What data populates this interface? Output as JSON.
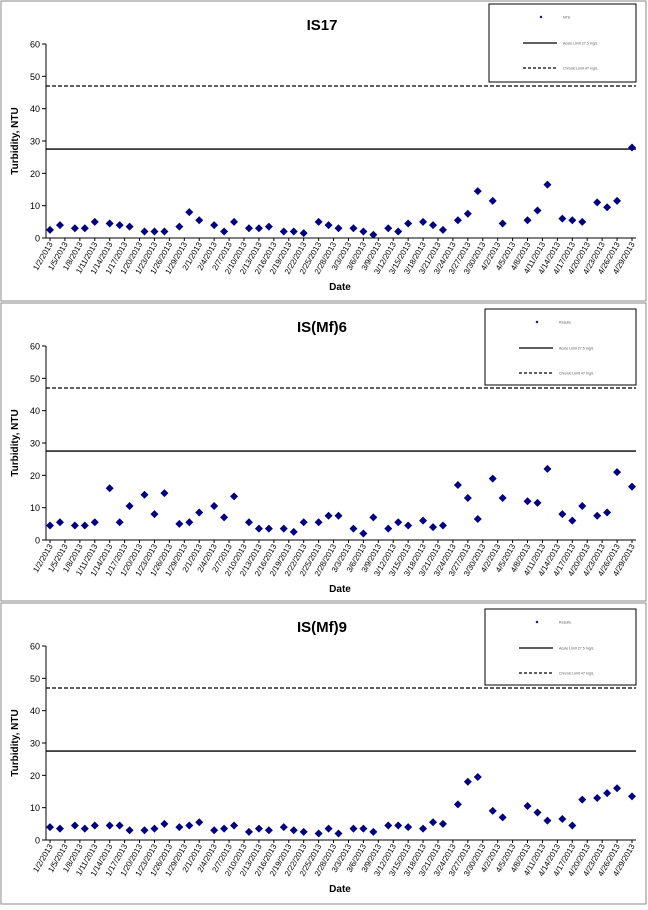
{
  "charts_common": {
    "ylabel": "Turbidity, NTU",
    "xlabel": "Date",
    "ylim": [
      0,
      60
    ],
    "yticks": [
      0,
      10,
      20,
      30,
      40,
      50,
      60
    ],
    "date_ticks": [
      "1/2/2013",
      "1/5/2013",
      "1/8/2013",
      "1/11/2013",
      "1/14/2013",
      "1/17/2013",
      "1/20/2013",
      "1/23/2013",
      "1/26/2013",
      "1/29/2013",
      "2/1/2013",
      "2/4/2013",
      "2/7/2013",
      "2/10/2013",
      "2/13/2013",
      "2/16/2013",
      "2/19/2013",
      "2/22/2013",
      "2/25/2013",
      "2/28/2013",
      "3/3/2013",
      "3/6/2013",
      "3/9/2013",
      "3/12/2013",
      "3/15/2013",
      "3/18/2013",
      "3/21/2013",
      "3/24/2013",
      "3/27/2013",
      "3/30/2013",
      "4/2/2013",
      "4/5/2013",
      "4/8/2013",
      "4/11/2013",
      "4/14/2013",
      "4/17/2013",
      "4/20/2013",
      "4/23/2013",
      "4/26/2013",
      "4/29/2013"
    ],
    "xlim": [
      "1/2/2013",
      "4/29/2013"
    ],
    "colors": {
      "points": "#000080",
      "lines": "#000000"
    }
  },
  "chart_data": [
    {
      "type": "scatter",
      "title": "IS17",
      "legend": {
        "placement": "top-right",
        "entries": [
          "NTU",
          "Acute Limit 27.5 mg/L",
          "Chronic Limit 47 mg/L"
        ]
      },
      "reference_lines": [
        {
          "y": 27.5,
          "style": "solid"
        },
        {
          "y": 47,
          "style": "dashed"
        }
      ],
      "series": [
        {
          "x": [
            "1/2/2013",
            "1/4/2013",
            "1/7/2013",
            "1/9/2013",
            "1/11/2013",
            "1/14/2013",
            "1/16/2013",
            "1/18/2013",
            "1/21/2013",
            "1/23/2013",
            "1/25/2013",
            "1/28/2013",
            "1/30/2013",
            "2/1/2013",
            "2/4/2013",
            "2/6/2013",
            "2/8/2013",
            "2/11/2013",
            "2/13/2013",
            "2/15/2013",
            "2/18/2013",
            "2/20/2013",
            "2/22/2013",
            "2/25/2013",
            "2/27/2013",
            "3/1/2013",
            "3/4/2013",
            "3/6/2013",
            "3/8/2013",
            "3/11/2013",
            "3/13/2013",
            "3/15/2013",
            "3/18/2013",
            "3/20/2013",
            "3/22/2013",
            "3/25/2013",
            "3/27/2013",
            "3/29/2013",
            "4/1/2013",
            "4/3/2013",
            "4/8/2013",
            "4/10/2013",
            "4/12/2013",
            "4/15/2013",
            "4/17/2013",
            "4/19/2013",
            "4/22/2013",
            "4/24/2013",
            "4/26/2013",
            "4/29/2013"
          ],
          "y": [
            2.5,
            4,
            3,
            3,
            5,
            4.5,
            4,
            3.5,
            2,
            2,
            2,
            3.5,
            8,
            5.5,
            4,
            2,
            5,
            3,
            3,
            3.5,
            2,
            2,
            1.5,
            5,
            4,
            3,
            3,
            2,
            1,
            3,
            2,
            4.5,
            5,
            4,
            2.5,
            5.5,
            7.5,
            14.5,
            11.5,
            4.5,
            5.5,
            8.5,
            16.5,
            6,
            5.5,
            5,
            11,
            9.5,
            11.5,
            28
          ]
        }
      ]
    },
    {
      "type": "scatter",
      "title": "IS(Mf)6",
      "legend": {
        "placement": "top-right",
        "entries": [
          "Results",
          "Acute Limit 27.5 mg/L",
          "Chronic Limit 47 mg/L"
        ]
      },
      "reference_lines": [
        {
          "y": 27.5,
          "style": "solid"
        },
        {
          "y": 47,
          "style": "dashed"
        }
      ],
      "series": [
        {
          "x": [
            "1/2/2013",
            "1/4/2013",
            "1/7/2013",
            "1/9/2013",
            "1/11/2013",
            "1/14/2013",
            "1/16/2013",
            "1/18/2013",
            "1/21/2013",
            "1/23/2013",
            "1/25/2013",
            "1/28/2013",
            "1/30/2013",
            "2/1/2013",
            "2/4/2013",
            "2/6/2013",
            "2/8/2013",
            "2/11/2013",
            "2/13/2013",
            "2/15/2013",
            "2/18/2013",
            "2/20/2013",
            "2/22/2013",
            "2/25/2013",
            "2/27/2013",
            "3/1/2013",
            "3/4/2013",
            "3/6/2013",
            "3/8/2013",
            "3/11/2013",
            "3/13/2013",
            "3/15/2013",
            "3/18/2013",
            "3/20/2013",
            "3/22/2013",
            "3/25/2013",
            "3/27/2013",
            "3/29/2013",
            "4/1/2013",
            "4/3/2013",
            "4/8/2013",
            "4/10/2013",
            "4/12/2013",
            "4/15/2013",
            "4/17/2013",
            "4/19/2013",
            "4/22/2013",
            "4/24/2013",
            "4/26/2013",
            "4/29/2013"
          ],
          "y": [
            4.5,
            5.5,
            4.5,
            4.5,
            5.5,
            16,
            5.5,
            10.5,
            14,
            8,
            14.5,
            5,
            5.5,
            8.5,
            10.5,
            7,
            13.5,
            5.5,
            3.5,
            3.5,
            3.5,
            2.5,
            5.5,
            5.5,
            7.5,
            7.5,
            3.5,
            2,
            7,
            3.5,
            5.5,
            4.5,
            6,
            4,
            4.5,
            17,
            13,
            6.5,
            19,
            13,
            12,
            11.5,
            22,
            8,
            6,
            10.5,
            7.5,
            8.5,
            21,
            16.5
          ]
        }
      ]
    },
    {
      "type": "scatter",
      "title": "IS(Mf)9",
      "legend": {
        "placement": "top-right",
        "entries": [
          "Results",
          "Acute Limit 27.5 mg/L",
          "Chronic Limit 47 mg/L"
        ]
      },
      "reference_lines": [
        {
          "y": 27.5,
          "style": "solid"
        },
        {
          "y": 47,
          "style": "dashed"
        }
      ],
      "series": [
        {
          "x": [
            "1/2/2013",
            "1/4/2013",
            "1/7/2013",
            "1/9/2013",
            "1/11/2013",
            "1/14/2013",
            "1/16/2013",
            "1/18/2013",
            "1/21/2013",
            "1/23/2013",
            "1/25/2013",
            "1/28/2013",
            "1/30/2013",
            "2/1/2013",
            "2/4/2013",
            "2/6/2013",
            "2/8/2013",
            "2/11/2013",
            "2/13/2013",
            "2/15/2013",
            "2/18/2013",
            "2/20/2013",
            "2/22/2013",
            "2/25/2013",
            "2/27/2013",
            "3/1/2013",
            "3/4/2013",
            "3/6/2013",
            "3/8/2013",
            "3/11/2013",
            "3/13/2013",
            "3/15/2013",
            "3/18/2013",
            "3/20/2013",
            "3/22/2013",
            "3/25/2013",
            "3/27/2013",
            "3/29/2013",
            "4/1/2013",
            "4/3/2013",
            "4/8/2013",
            "4/10/2013",
            "4/12/2013",
            "4/15/2013",
            "4/17/2013",
            "4/19/2013",
            "4/22/2013",
            "4/24/2013",
            "4/26/2013",
            "4/29/2013"
          ],
          "y": [
            4,
            3.5,
            4.5,
            3.5,
            4.5,
            4.5,
            4.5,
            3,
            3,
            3.5,
            5,
            4,
            4.5,
            5.5,
            3,
            3.5,
            4.5,
            2.5,
            3.5,
            3,
            4,
            3,
            2.5,
            2,
            3.5,
            2,
            3.5,
            3.5,
            2.5,
            4.5,
            4.5,
            4,
            3.5,
            5.5,
            5,
            11,
            18,
            19.5,
            9,
            7,
            10.5,
            8.5,
            6,
            6.5,
            4.5,
            12.5,
            13,
            14.5,
            16,
            13.5
          ]
        }
      ]
    }
  ]
}
